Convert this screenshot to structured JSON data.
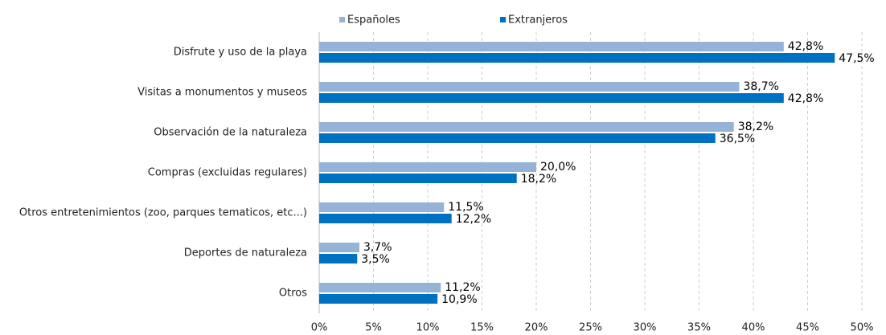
{
  "chart_data": {
    "type": "hbar",
    "categories": [
      "Disfrute y uso de la playa",
      "Visitas a monumentos y museos",
      "Observación de la naturaleza",
      "Compras (excluidas regulares)",
      "Otros entretenimientos (zoo, parques tematicos, etc...)",
      "Deportes de naturaleza",
      "Otros"
    ],
    "series": [
      {
        "name": "Españoles",
        "color": "#95b3d7",
        "values": [
          42.8,
          38.7,
          38.2,
          20.0,
          11.5,
          3.7,
          11.2
        ],
        "value_labels": [
          "42,8%",
          "38,7%",
          "38,2%",
          "20,0%",
          "11,5%",
          "3,7%",
          "11,2%"
        ]
      },
      {
        "name": "Extranjeros",
        "color": "#0070c0",
        "values": [
          47.5,
          42.8,
          36.5,
          18.2,
          12.2,
          3.5,
          10.9
        ],
        "value_labels": [
          "47,5%",
          "42,8%",
          "36,5%",
          "18,2%",
          "12,2%",
          "3,5%",
          "10,9%"
        ]
      }
    ],
    "xlim": [
      0,
      50
    ],
    "xticks": [
      {
        "value": 0,
        "label": "0%"
      },
      {
        "value": 5,
        "label": "5%"
      },
      {
        "value": 10,
        "label": "10%"
      },
      {
        "value": 15,
        "label": "15%"
      },
      {
        "value": 20,
        "label": "20%"
      },
      {
        "value": 25,
        "label": "25%"
      },
      {
        "value": 30,
        "label": "30%"
      },
      {
        "value": 35,
        "label": "35%"
      },
      {
        "value": 40,
        "label": "40%"
      },
      {
        "value": 45,
        "label": "45%"
      },
      {
        "value": 50,
        "label": "50%"
      }
    ],
    "grid": true,
    "legend": "top"
  }
}
